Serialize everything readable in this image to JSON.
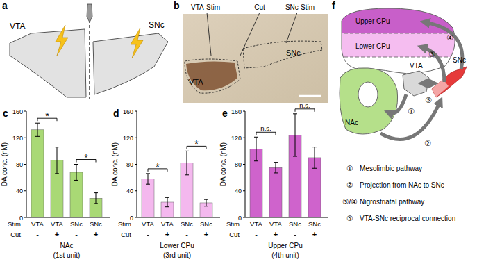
{
  "chart_data": [
    {
      "type": "bar",
      "panel": "c",
      "title": "NAc",
      "subtitle": "(1st unit)",
      "y_label": "DA conc. (nM)",
      "row_labels": [
        "Stim",
        "Cut"
      ],
      "categories": [
        "VTA",
        "VTA",
        "SNc",
        "SNc"
      ],
      "cut": [
        "-",
        "+",
        "-",
        "+"
      ],
      "values": [
        132,
        86,
        68,
        29
      ],
      "errors": [
        10,
        20,
        12,
        8
      ],
      "color": "#a9d975",
      "ylim": [
        0,
        160
      ],
      "yticks": [
        0,
        40,
        80,
        120,
        160
      ],
      "annotations": [
        {
          "bars": [
            0,
            1
          ],
          "text": "*"
        },
        {
          "bars": [
            2,
            3
          ],
          "text": "*"
        }
      ]
    },
    {
      "type": "bar",
      "panel": "d",
      "title": "Lower CPu",
      "subtitle": "(3rd unit)",
      "y_label": "DA conc. (nM)",
      "row_labels": [
        "Stim",
        "Cut"
      ],
      "categories": [
        "VTA",
        "VTA",
        "SNc",
        "SNc"
      ],
      "cut": [
        "-",
        "+",
        "-",
        "+"
      ],
      "values": [
        58,
        23,
        82,
        22
      ],
      "errors": [
        8,
        7,
        18,
        5
      ],
      "color": "#f4b8ee",
      "ylim": [
        0,
        160
      ],
      "yticks": [
        0,
        40,
        80,
        120,
        160
      ],
      "annotations": [
        {
          "bars": [
            0,
            1
          ],
          "text": "*"
        },
        {
          "bars": [
            2,
            3
          ],
          "text": "*"
        }
      ]
    },
    {
      "type": "bar",
      "panel": "e",
      "title": "Upper CPu",
      "subtitle": "(4th unit)",
      "y_label": "DA conc. (nM)",
      "row_labels": [
        "Stim",
        "Cut"
      ],
      "categories": [
        "VTA",
        "VTA",
        "SNc",
        "SNc"
      ],
      "cut": [
        "-",
        "+",
        "-",
        "+"
      ],
      "values": [
        103,
        75,
        124,
        90
      ],
      "errors": [
        18,
        8,
        32,
        16
      ],
      "color": "#cf63cc",
      "ylim": [
        0,
        160
      ],
      "yticks": [
        0,
        40,
        80,
        120,
        160
      ],
      "annotations": [
        {
          "bars": [
            0,
            1
          ],
          "text": "n.s."
        },
        {
          "bars": [
            2,
            3
          ],
          "text": "n.s."
        }
      ]
    }
  ],
  "panel_a": {
    "panel": "a",
    "labels": [
      "VTA",
      "SNc"
    ]
  },
  "panel_b": {
    "panel": "b",
    "top_labels": [
      "VTA-Stim",
      "Cut",
      "SNc-Stim"
    ],
    "region_labels": [
      "SNc",
      "VTA"
    ]
  },
  "panel_f": {
    "panel": "f",
    "regions": [
      "Upper CPu",
      "Lower CPu",
      "VTA",
      "SNc",
      "NAc"
    ],
    "arrow_labels": [
      "①",
      "②",
      "③",
      "④",
      "⑤"
    ],
    "pathways": [
      {
        "number": "①",
        "text": "Mesolimbic pathway"
      },
      {
        "number": "②",
        "text": "Projection from NAc to SNc"
      },
      {
        "number": "③/④",
        "text": "Nigrostriatal pathway"
      },
      {
        "number": "⑤",
        "text": "VTA-SNc reciprocal connection"
      }
    ]
  }
}
